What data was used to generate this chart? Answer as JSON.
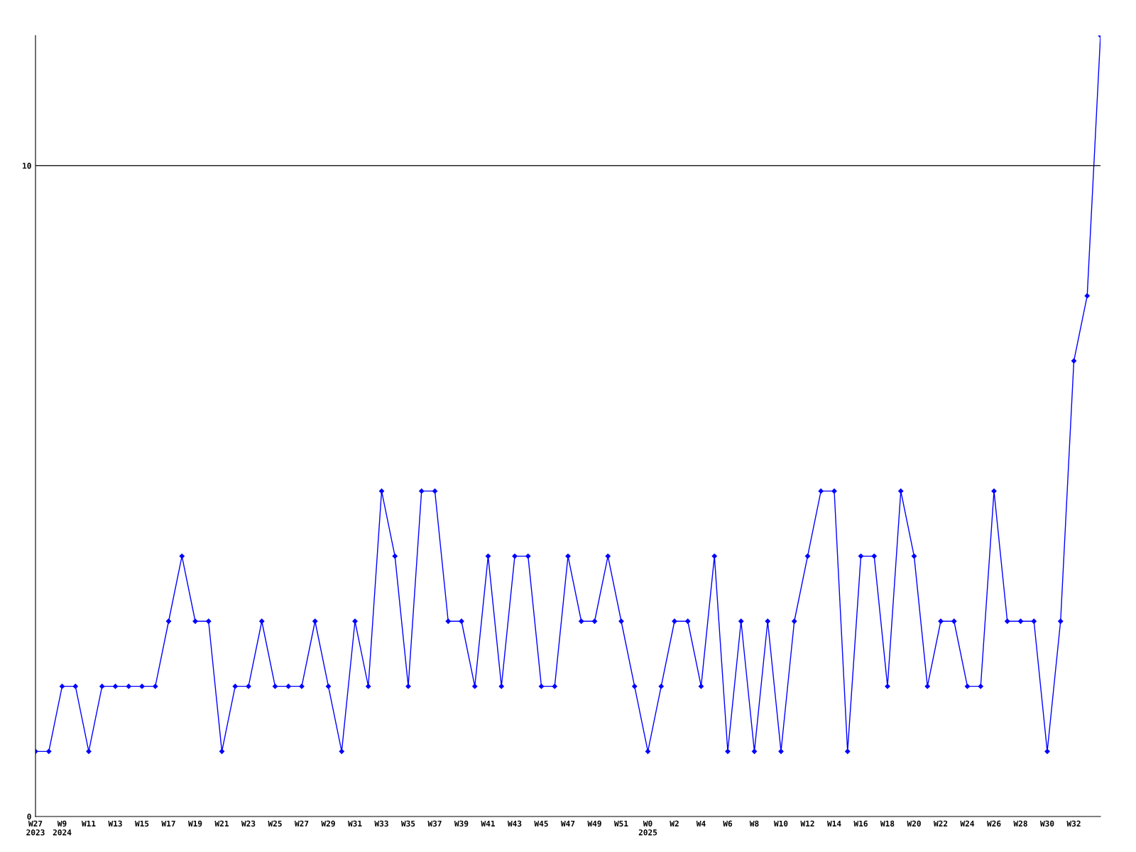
{
  "chart_data": {
    "type": "line",
    "categories": [
      "W27\n2023",
      null,
      "W9\n2024",
      null,
      "W11",
      null,
      "W13",
      null,
      "W15",
      null,
      "W17",
      null,
      "W19",
      null,
      "W21",
      null,
      "W23",
      null,
      "W25",
      null,
      "W27",
      null,
      "W29",
      null,
      "W31",
      null,
      "W33",
      null,
      "W35",
      null,
      "W37",
      null,
      "W39",
      null,
      "W41",
      null,
      "W43",
      null,
      "W45",
      null,
      "W47",
      null,
      "W49",
      null,
      "W51",
      null,
      "W0\n2025",
      null,
      "W2",
      null,
      "W4",
      null,
      "W6",
      null,
      "W8",
      null,
      "W10",
      null,
      "W12",
      null,
      "W14",
      null,
      "W16",
      null,
      "W18",
      null,
      "W20",
      null,
      "W22",
      null,
      "W24",
      null,
      "W26",
      null,
      "W28",
      null,
      "W30",
      null,
      "W32",
      null,
      null
    ],
    "series": [
      {
        "color": "#0000ff",
        "values": [
          1,
          1,
          2,
          2,
          1,
          2,
          2,
          2,
          2,
          2,
          3,
          4,
          3,
          3,
          1,
          2,
          2,
          3,
          2,
          2,
          2,
          3,
          2,
          1,
          3,
          2,
          5,
          4,
          2,
          5,
          5,
          3,
          3,
          2,
          4,
          2,
          4,
          4,
          2,
          2,
          4,
          3,
          3,
          4,
          3,
          2,
          1,
          2,
          3,
          3,
          2,
          4,
          1,
          3,
          1,
          3,
          1,
          3,
          4,
          5,
          5,
          1,
          4,
          4,
          2,
          5,
          4,
          2,
          3,
          3,
          2,
          2,
          5,
          3,
          3,
          3,
          1,
          3,
          7,
          8,
          12
        ]
      }
    ],
    "ylim": [
      0,
      12
    ],
    "yticks": [
      0,
      10
    ],
    "ref_lines": [
      {
        "axis": "y",
        "value": 10,
        "color": "#000000"
      }
    ],
    "marker": "diamond",
    "line_style": "solid",
    "grid": false,
    "legend": false
  }
}
